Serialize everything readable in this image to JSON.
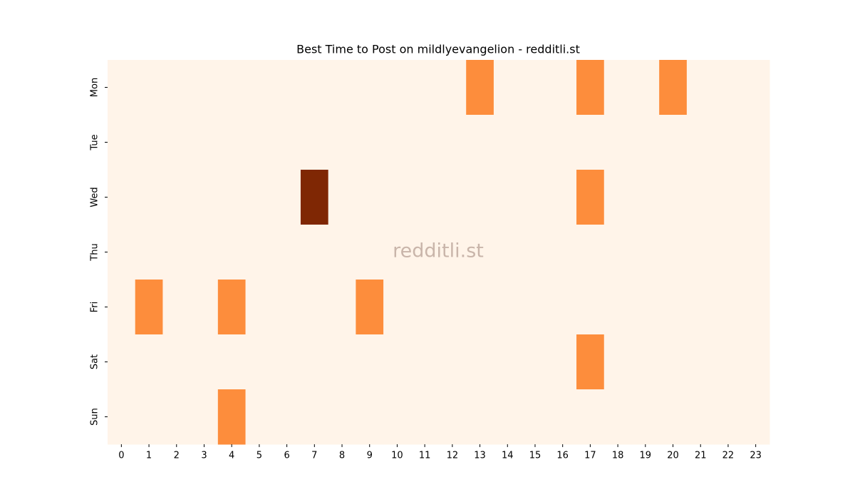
{
  "chart_data": {
    "type": "heatmap",
    "title": "Best Time to Post on mildlyevangelion - redditli.st",
    "watermark": "redditli.st",
    "x": [
      0,
      1,
      2,
      3,
      4,
      5,
      6,
      7,
      8,
      9,
      10,
      11,
      12,
      13,
      14,
      15,
      16,
      17,
      18,
      19,
      20,
      21,
      22,
      23
    ],
    "y": [
      "Mon",
      "Tue",
      "Wed",
      "Thu",
      "Fri",
      "Sat",
      "Sun"
    ],
    "values": [
      [
        0,
        0,
        0,
        0,
        0,
        0,
        0,
        0,
        0,
        0,
        0,
        0,
        0,
        1,
        0,
        0,
        0,
        1,
        0,
        0,
        1,
        0,
        0,
        0
      ],
      [
        0,
        0,
        0,
        0,
        0,
        0,
        0,
        0,
        0,
        0,
        0,
        0,
        0,
        0,
        0,
        0,
        0,
        0,
        0,
        0,
        0,
        0,
        0,
        0
      ],
      [
        0,
        0,
        0,
        0,
        0,
        0,
        0,
        2,
        0,
        0,
        0,
        0,
        0,
        0,
        0,
        0,
        0,
        1,
        0,
        0,
        0,
        0,
        0,
        0
      ],
      [
        0,
        0,
        0,
        0,
        0,
        0,
        0,
        0,
        0,
        0,
        0,
        0,
        0,
        0,
        0,
        0,
        0,
        0,
        0,
        0,
        0,
        0,
        0,
        0
      ],
      [
        0,
        1,
        0,
        0,
        1,
        0,
        0,
        0,
        0,
        1,
        0,
        0,
        0,
        0,
        0,
        0,
        0,
        0,
        0,
        0,
        0,
        0,
        0,
        0
      ],
      [
        0,
        0,
        0,
        0,
        0,
        0,
        0,
        0,
        0,
        0,
        0,
        0,
        0,
        0,
        0,
        0,
        0,
        1,
        0,
        0,
        0,
        0,
        0,
        0
      ],
      [
        0,
        0,
        0,
        0,
        1,
        0,
        0,
        0,
        0,
        0,
        0,
        0,
        0,
        0,
        0,
        0,
        0,
        0,
        0,
        0,
        0,
        0,
        0,
        0
      ]
    ],
    "zlim": [
      0,
      2
    ],
    "color_scale": [
      "#fff4e9",
      "#fd8d3c",
      "#7f2704"
    ]
  }
}
